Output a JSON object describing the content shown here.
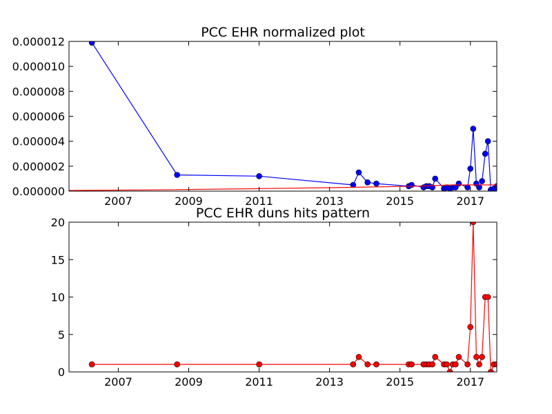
{
  "chart_data": [
    {
      "type": "line",
      "title": "PCC EHR normalized plot",
      "xlabel": "",
      "ylabel": "",
      "xlim": [
        2005.6,
        2017.75
      ],
      "ylim": [
        0,
        1.2e-05
      ],
      "xticks": [
        2007,
        2009,
        2011,
        2013,
        2015,
        2017
      ],
      "xtick_labels": [
        "2007",
        "2009",
        "2011",
        "2013",
        "2015",
        "2017"
      ],
      "yticks": [
        0,
        2e-06,
        4e-06,
        6e-06,
        8e-06,
        1e-05,
        1.2e-05
      ],
      "ytick_labels": [
        "0.000000",
        "0.000002",
        "0.000004",
        "0.000006",
        "0.000008",
        "0.000010",
        "0.000012"
      ],
      "grid": false,
      "series": [
        {
          "color": "#0000ff",
          "marker": "circle",
          "x": [
            2006.25,
            2008.67,
            2011.0,
            2013.67,
            2013.83,
            2014.08,
            2014.33,
            2015.25,
            2015.33,
            2015.67,
            2015.75,
            2015.83,
            2015.92,
            2016.0,
            2016.25,
            2016.33,
            2016.42,
            2016.5,
            2016.58,
            2016.67,
            2016.92,
            2017.0,
            2017.08,
            2017.17,
            2017.25,
            2017.33,
            2017.42,
            2017.5,
            2017.58,
            2017.67,
            2017.75
          ],
          "y": [
            1.19e-05,
            1.3e-06,
            1.2e-06,
            5e-07,
            1.5e-06,
            7e-07,
            6e-07,
            4e-07,
            5e-07,
            3e-07,
            4e-07,
            4e-07,
            3e-07,
            1e-06,
            2e-07,
            3e-07,
            2e-07,
            3e-07,
            3e-07,
            6e-07,
            3e-07,
            1.8e-06,
            5e-06,
            6e-07,
            3e-07,
            8e-07,
            3e-06,
            4e-06,
            1e-07,
            2e-07,
            4e-07
          ]
        },
        {
          "color": "#ff0000",
          "marker": "none",
          "x": [
            2005.6,
            2008.0,
            2011.0,
            2013.5,
            2015.5,
            2016.5,
            2017.75
          ],
          "y": [
            5e-08,
            1e-07,
            2e-07,
            3e-07,
            4e-07,
            5e-07,
            5e-07
          ]
        }
      ]
    },
    {
      "type": "line",
      "title": "PCC EHR duns hits pattern",
      "xlabel": "",
      "ylabel": "",
      "xlim": [
        2005.6,
        2017.75
      ],
      "ylim": [
        0,
        20
      ],
      "xticks": [
        2007,
        2009,
        2011,
        2013,
        2015,
        2017
      ],
      "xtick_labels": [
        "2007",
        "2009",
        "2011",
        "2013",
        "2015",
        "2017"
      ],
      "yticks": [
        0,
        5,
        10,
        15,
        20
      ],
      "ytick_labels": [
        "0",
        "5",
        "10",
        "15",
        "20"
      ],
      "grid": false,
      "series": [
        {
          "color": "#ff0000",
          "marker": "circle",
          "x": [
            2006.25,
            2008.67,
            2011.0,
            2013.67,
            2013.83,
            2014.08,
            2014.33,
            2015.25,
            2015.33,
            2015.67,
            2015.75,
            2015.83,
            2015.92,
            2016.0,
            2016.25,
            2016.33,
            2016.42,
            2016.5,
            2016.58,
            2016.67,
            2016.92,
            2017.0,
            2017.08,
            2017.17,
            2017.25,
            2017.33,
            2017.42,
            2017.5,
            2017.58,
            2017.67,
            2017.75
          ],
          "y": [
            1,
            1,
            1,
            1,
            2,
            1,
            1,
            1,
            1,
            1,
            1,
            1,
            1,
            2,
            1,
            1,
            0,
            1,
            1,
            2,
            1,
            6,
            20,
            2,
            1,
            2,
            10,
            10,
            0,
            1,
            1
          ]
        }
      ]
    }
  ]
}
